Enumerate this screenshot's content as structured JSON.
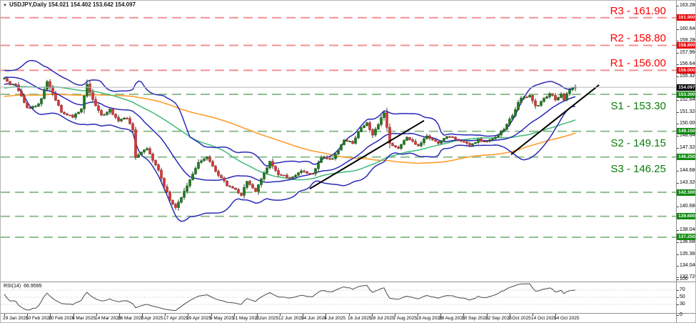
{
  "header": {
    "marker": "▼",
    "title": "USDJPY,Daily 154.021 154.402 153.642 154.097"
  },
  "colors": {
    "bull": "#1e7d1e",
    "bull_border": "#145814",
    "bear": "#d23b3b",
    "bear_border": "#a32525",
    "wick": "#3a3a3a",
    "bollinger": "#2a2ab8",
    "ma_fast": "#4bbd7f",
    "ma_slow": "#ff9d2e",
    "resistance_line": "#f29191",
    "support_line": "#8fbf8f",
    "current_price_line": "#b3bac1",
    "trendline": "#000000",
    "rsi_line": "#4a4a4a",
    "rsi_level_line": "#c4c4c4"
  },
  "chart_data": {
    "type": "candlestick",
    "symbol": "USDJPY",
    "timeframe": "Daily",
    "ohlc_current": {
      "open": 154.021,
      "high": 154.402,
      "low": 153.642,
      "close": 154.097
    },
    "last_price": "154.097",
    "visible_price_range": [
      132.3,
      163.7
    ],
    "axis_ticks": [
      "163.280",
      "160.640",
      "159.280",
      "157.960",
      "156.640",
      "155.320",
      "152.640",
      "151.320",
      "150.000",
      "148.640",
      "147.320",
      "144.680",
      "143.320",
      "140.680",
      "138.040",
      "136.680",
      "135.360",
      "134.040",
      "132.720"
    ],
    "badges": [
      {
        "label": "161.900",
        "type": "res"
      },
      {
        "label": "158.800",
        "type": "res"
      },
      {
        "label": "156.000",
        "type": "res"
      },
      {
        "label": "154.097",
        "type": "cur"
      },
      {
        "label": "153.300",
        "type": "sup"
      },
      {
        "label": "149.150",
        "type": "sup"
      },
      {
        "label": "146.250",
        "type": "sup"
      },
      {
        "label": "142.300",
        "type": "sup"
      },
      {
        "label": "139.600",
        "type": "sup"
      },
      {
        "label": "137.250",
        "type": "sup"
      }
    ],
    "levels": {
      "resistance": [
        {
          "name": "R3",
          "price": 161.9,
          "label": "R3 - 161.90"
        },
        {
          "name": "R2",
          "price": 158.8,
          "label": "R2 - 158.80"
        },
        {
          "name": "R1",
          "price": 156.0,
          "label": "R1 - 156.00"
        }
      ],
      "support": [
        {
          "name": "S1",
          "price": 153.3,
          "label": "S1 - 153.30"
        },
        {
          "name": "S2",
          "price": 149.15,
          "label": "S2 - 149.15"
        },
        {
          "name": "S3",
          "price": 146.25,
          "label": "S3 - 146.25"
        }
      ],
      "extra_support": [
        142.3,
        139.6,
        137.25
      ]
    },
    "trendlines": [
      {
        "from": [
          107,
          142.7
        ],
        "to": [
          147,
          150.35
        ]
      },
      {
        "from": [
          177.5,
          146.55
        ],
        "to": [
          208.3,
          154.35
        ]
      }
    ],
    "pre_anchors": [
      [
        -100,
        151.5
      ],
      [
        -80,
        152.4
      ],
      [
        -60,
        152.0
      ],
      [
        -40,
        152.9
      ],
      [
        -25,
        153.6
      ],
      [
        -15,
        154.9
      ],
      [
        -8,
        155.9
      ],
      [
        -1,
        155.1
      ]
    ],
    "price_anchors": [
      [
        0,
        155.0
      ],
      [
        2,
        154.5
      ],
      [
        4,
        154.4
      ],
      [
        6,
        153.1
      ],
      [
        8,
        151.7
      ],
      [
        11,
        151.9
      ],
      [
        13,
        152.8
      ],
      [
        15,
        154.7
      ],
      [
        17,
        153.3
      ],
      [
        20,
        151.3
      ],
      [
        24,
        150.8
      ],
      [
        27,
        151.7
      ],
      [
        29,
        154.5
      ],
      [
        31,
        152.6
      ],
      [
        34,
        150.9
      ],
      [
        37,
        151.6
      ],
      [
        40,
        150.3
      ],
      [
        43,
        150.6
      ],
      [
        45,
        149.4
      ],
      [
        46,
        146.1
      ],
      [
        48,
        146.9
      ],
      [
        50,
        147.3
      ],
      [
        52,
        146.0
      ],
      [
        54,
        144.9
      ],
      [
        56,
        143.0
      ],
      [
        58,
        141.4
      ],
      [
        60,
        140.7
      ],
      [
        62,
        141.8
      ],
      [
        64,
        142.9
      ],
      [
        66,
        144.3
      ],
      [
        68,
        145.6
      ],
      [
        71,
        146.3
      ],
      [
        73,
        145.1
      ],
      [
        75,
        144.3
      ],
      [
        78,
        143.1
      ],
      [
        81,
        142.6
      ],
      [
        83,
        142.0
      ],
      [
        85,
        143.6
      ],
      [
        88,
        142.3
      ],
      [
        91,
        144.5
      ],
      [
        93,
        145.8
      ],
      [
        96,
        144.3
      ],
      [
        100,
        143.9
      ],
      [
        104,
        144.7
      ],
      [
        108,
        144.3
      ],
      [
        111,
        146.2
      ],
      [
        115,
        146.0
      ],
      [
        119,
        148.3
      ],
      [
        122,
        147.8
      ],
      [
        125,
        149.6
      ],
      [
        127,
        150.1
      ],
      [
        129,
        148.6
      ],
      [
        131,
        150.0
      ],
      [
        133,
        151.3
      ],
      [
        135,
        147.8
      ],
      [
        138,
        147.3
      ],
      [
        141,
        148.4
      ],
      [
        145,
        147.6
      ],
      [
        148,
        148.6
      ],
      [
        152,
        147.9
      ],
      [
        156,
        148.6
      ],
      [
        159,
        148.2
      ],
      [
        163,
        147.6
      ],
      [
        166,
        148.2
      ],
      [
        169,
        147.9
      ],
      [
        173,
        148.8
      ],
      [
        175,
        149.5
      ],
      [
        178,
        151.0
      ],
      [
        181,
        152.9
      ],
      [
        184,
        153.1
      ],
      [
        186,
        151.9
      ],
      [
        188,
        152.4
      ],
      [
        191,
        153.5
      ],
      [
        193,
        152.7
      ],
      [
        195,
        153.3
      ],
      [
        196,
        152.6
      ],
      [
        198,
        153.9
      ],
      [
        200,
        154.1
      ]
    ],
    "indicators": {
      "bollinger_period": 20,
      "bollinger_deviation": 2,
      "ma_fast_period": 50,
      "ma_slow_period": 100
    },
    "rsi": {
      "label": "RSI(14)",
      "value": "66.9595",
      "period": 14,
      "levels": [
        70,
        50,
        30
      ],
      "scale": [
        "100",
        "70",
        "50",
        "30",
        "0"
      ]
    },
    "dates": [
      "29 Jan 2025",
      "10 Feb 2025",
      "20 Feb 2025",
      "4 Mar 2025",
      "14 Mar 2025",
      "26 Mar 2025",
      "7 Apr 2025",
      "17 Apr 2025",
      "29 Apr 2025",
      "9 May 2025",
      "21 May 2025",
      "2 Jun 2025",
      "12 Jun 2025",
      "24 Jun 2025",
      "4 Jul 2025",
      "16 Jul 2025",
      "28 Jul 2025",
      "7 Aug 2025",
      "19 Aug 2025",
      "29 Aug 2025",
      "10 Sep 2025",
      "22 Sep 2025",
      "2 Oct 2025",
      "14 Oct 2025",
      "24 Oct 2025"
    ]
  }
}
